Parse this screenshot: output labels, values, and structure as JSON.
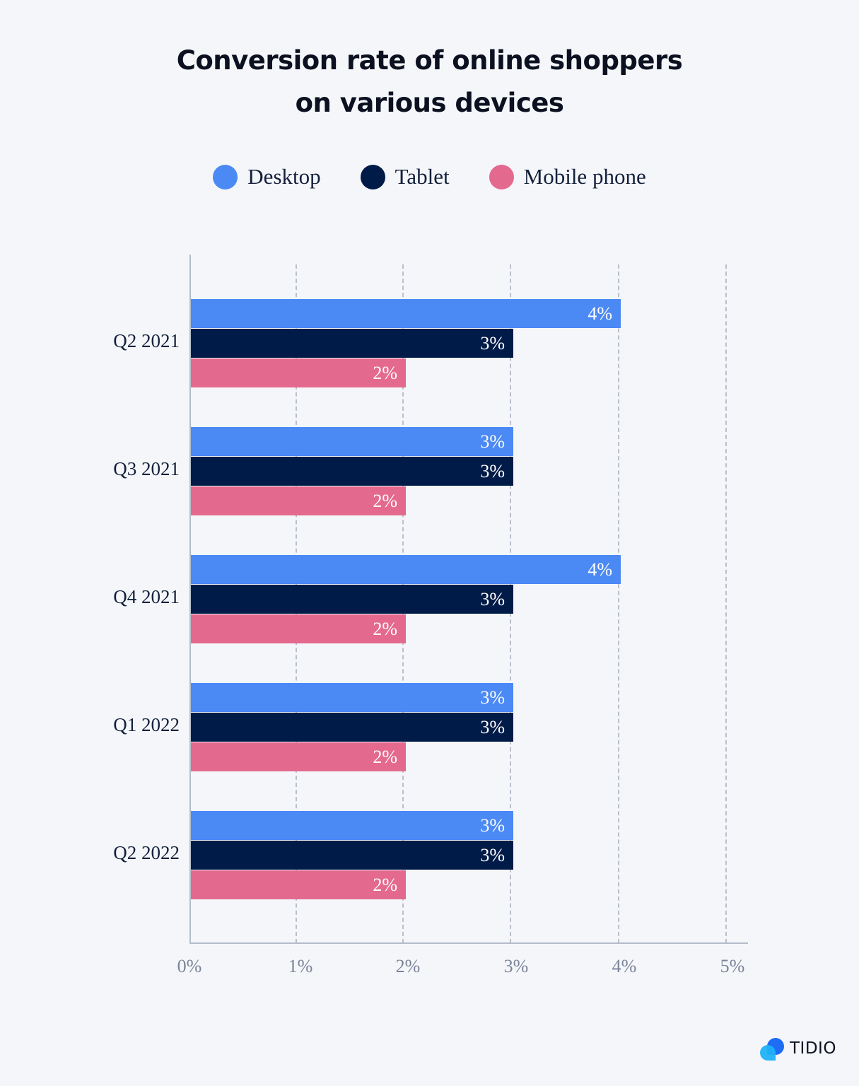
{
  "title_line1": "Conversion rate of online shoppers",
  "title_line2": "on various devices",
  "legend": [
    {
      "label": "Desktop",
      "color": "#4b89f5"
    },
    {
      "label": "Tablet",
      "color": "#001b47"
    },
    {
      "label": "Mobile phone",
      "color": "#e4698f"
    }
  ],
  "brand": "TIDIO",
  "chart_data": {
    "type": "bar",
    "orientation": "horizontal",
    "title": "Conversion rate of online shoppers on various devices",
    "xlabel": "",
    "ylabel": "",
    "categories": [
      "Q2 2021",
      "Q3 2021",
      "Q4 2021",
      "Q1 2022",
      "Q2 2022"
    ],
    "series": [
      {
        "name": "Desktop",
        "color": "#4b89f5",
        "values": [
          4,
          3,
          4,
          3,
          3
        ],
        "labels": [
          "4%",
          "3%",
          "4%",
          "3%",
          "3%"
        ]
      },
      {
        "name": "Tablet",
        "color": "#001b47",
        "values": [
          3,
          3,
          3,
          3,
          3
        ],
        "labels": [
          "3%",
          "3%",
          "3%",
          "3%",
          "3%"
        ]
      },
      {
        "name": "Mobile phone",
        "color": "#e4698f",
        "values": [
          2,
          2,
          2,
          2,
          2
        ],
        "labels": [
          "2%",
          "2%",
          "2%",
          "2%",
          "2%"
        ]
      }
    ],
    "xlim": [
      0,
      5
    ],
    "xticks": [
      "0%",
      "1%",
      "2%",
      "3%",
      "4%",
      "5%"
    ],
    "grid": "vertical dashed",
    "legend_position": "top"
  }
}
